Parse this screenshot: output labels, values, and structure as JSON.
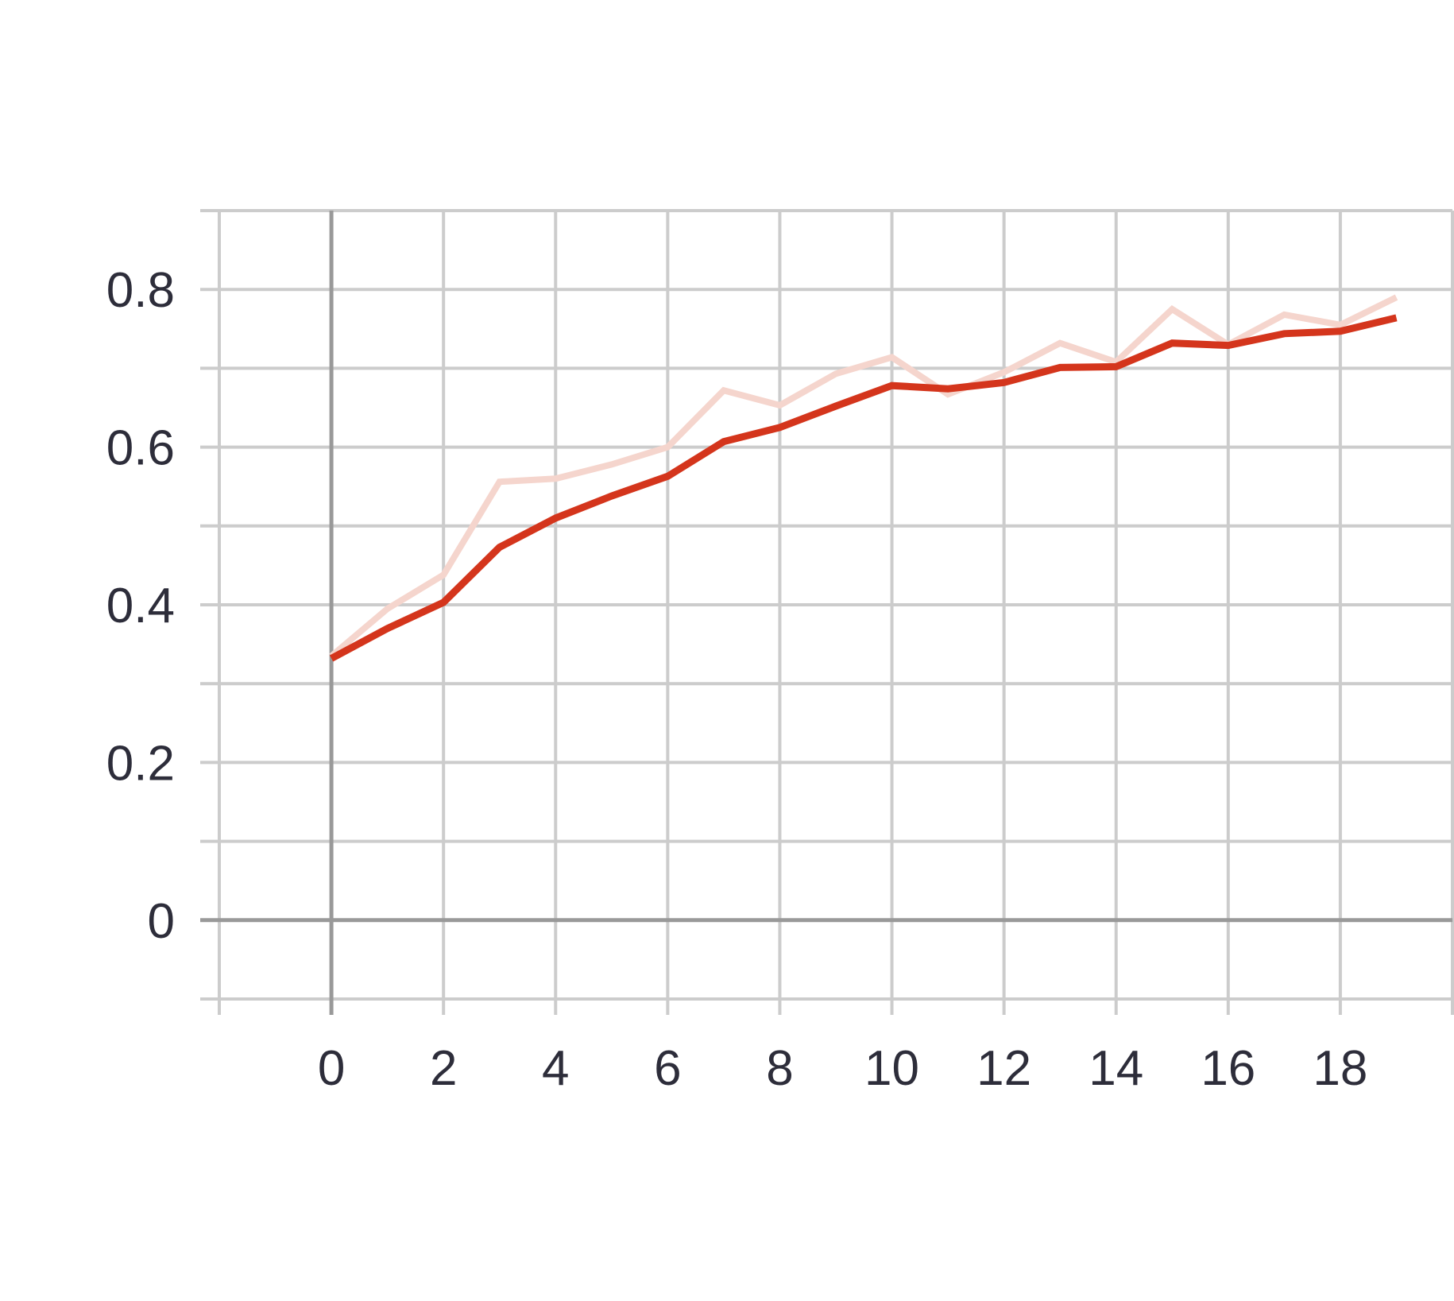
{
  "chart_data": {
    "type": "line",
    "title": "",
    "xlabel": "",
    "ylabel": "",
    "xlim": [
      -2,
      20
    ],
    "ylim": [
      -0.1,
      0.9
    ],
    "x_ticks": [
      0,
      2,
      4,
      6,
      8,
      10,
      12,
      14,
      16,
      18
    ],
    "x_tick_labels": [
      "0",
      "2",
      "4",
      "6",
      "8",
      "10",
      "12",
      "14",
      "16",
      "18"
    ],
    "y_ticks": [
      0,
      0.2,
      0.4,
      0.6,
      0.8
    ],
    "y_tick_labels": [
      "0",
      "0.2",
      "0.4",
      "0.6",
      "0.8"
    ],
    "grid": true,
    "x": [
      0,
      1,
      2,
      3,
      4,
      5,
      6,
      7,
      8,
      9,
      10,
      11,
      12,
      13,
      14,
      15,
      16,
      17,
      18,
      19
    ],
    "series": [
      {
        "role": "raw",
        "color": "#f5d5cd",
        "values": [
          0.335,
          0.395,
          0.438,
          0.556,
          0.56,
          0.578,
          0.6,
          0.672,
          0.653,
          0.693,
          0.714,
          0.667,
          0.695,
          0.732,
          0.708,
          0.775,
          0.73,
          0.768,
          0.755,
          0.79
        ]
      },
      {
        "role": "smoothed",
        "color": "#d4351c",
        "values": [
          0.332,
          0.37,
          0.403,
          0.473,
          0.51,
          0.538,
          0.563,
          0.607,
          0.625,
          0.652,
          0.678,
          0.674,
          0.682,
          0.701,
          0.702,
          0.732,
          0.729,
          0.744,
          0.747,
          0.764
        ]
      }
    ]
  }
}
